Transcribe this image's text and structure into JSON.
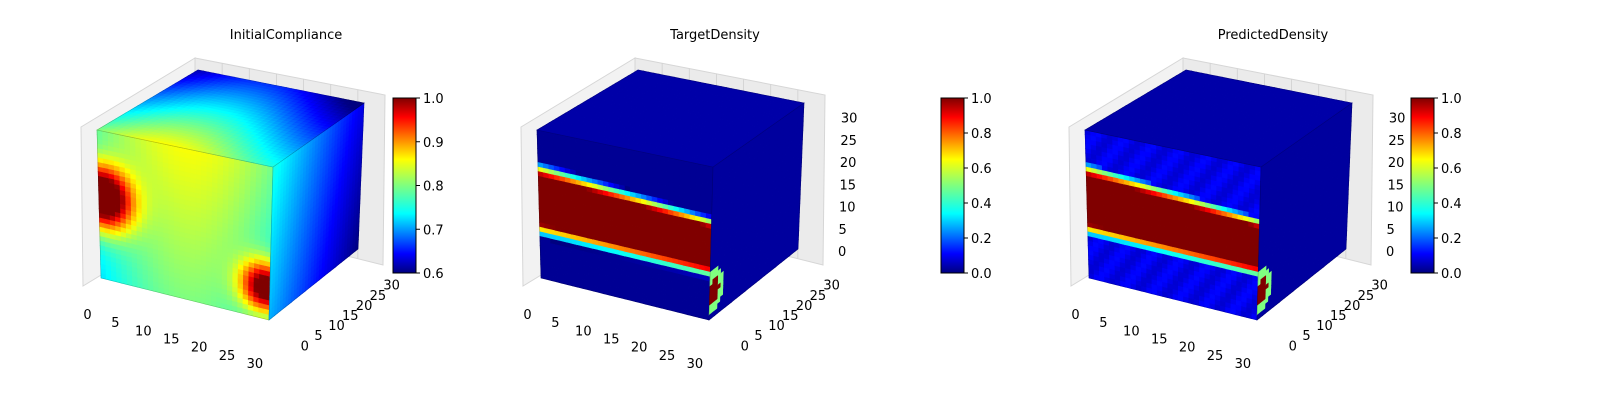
{
  "chart_data": [
    {
      "type": "heatmap",
      "title": "InitialCompliance",
      "x_ticks": [
        "0",
        "5",
        "10",
        "15",
        "20",
        "25",
        "30"
      ],
      "y_ticks": [
        "0",
        "5",
        "10",
        "15",
        "20",
        "25",
        "30"
      ],
      "z_ticks": [],
      "colormap": "jet",
      "colorbar": {
        "min": 0.6,
        "max": 1.0,
        "ticks": [
          "0.6",
          "0.7",
          "0.8",
          "0.9",
          "1.0"
        ]
      },
      "field": "compliance",
      "grid": true
    },
    {
      "type": "heatmap",
      "title": "TargetDensity",
      "x_ticks": [
        "0",
        "5",
        "10",
        "15",
        "20",
        "25",
        "30"
      ],
      "y_ticks": [
        "0",
        "5",
        "10",
        "15",
        "20",
        "25",
        "30"
      ],
      "z_ticks": [
        "0",
        "5",
        "10",
        "15",
        "20",
        "25",
        "30"
      ],
      "colormap": "jet",
      "colorbar": {
        "min": 0.0,
        "max": 1.0,
        "ticks": [
          "0.0",
          "0.2",
          "0.4",
          "0.6",
          "0.8",
          "1.0"
        ]
      },
      "field": "density",
      "grid": true
    },
    {
      "type": "heatmap",
      "title": "PredictedDensity",
      "x_ticks": [
        "0",
        "5",
        "10",
        "15",
        "20",
        "25",
        "30"
      ],
      "y_ticks": [
        "0",
        "5",
        "10",
        "15",
        "20",
        "25",
        "30"
      ],
      "z_ticks": [
        "0",
        "5",
        "10",
        "15",
        "20",
        "25",
        "30"
      ],
      "colormap": "jet",
      "colorbar": {
        "min": 0.0,
        "max": 1.0,
        "ticks": [
          "0.0",
          "0.2",
          "0.4",
          "0.6",
          "0.8",
          "1.0"
        ]
      },
      "field": "density",
      "grid": true
    }
  ]
}
